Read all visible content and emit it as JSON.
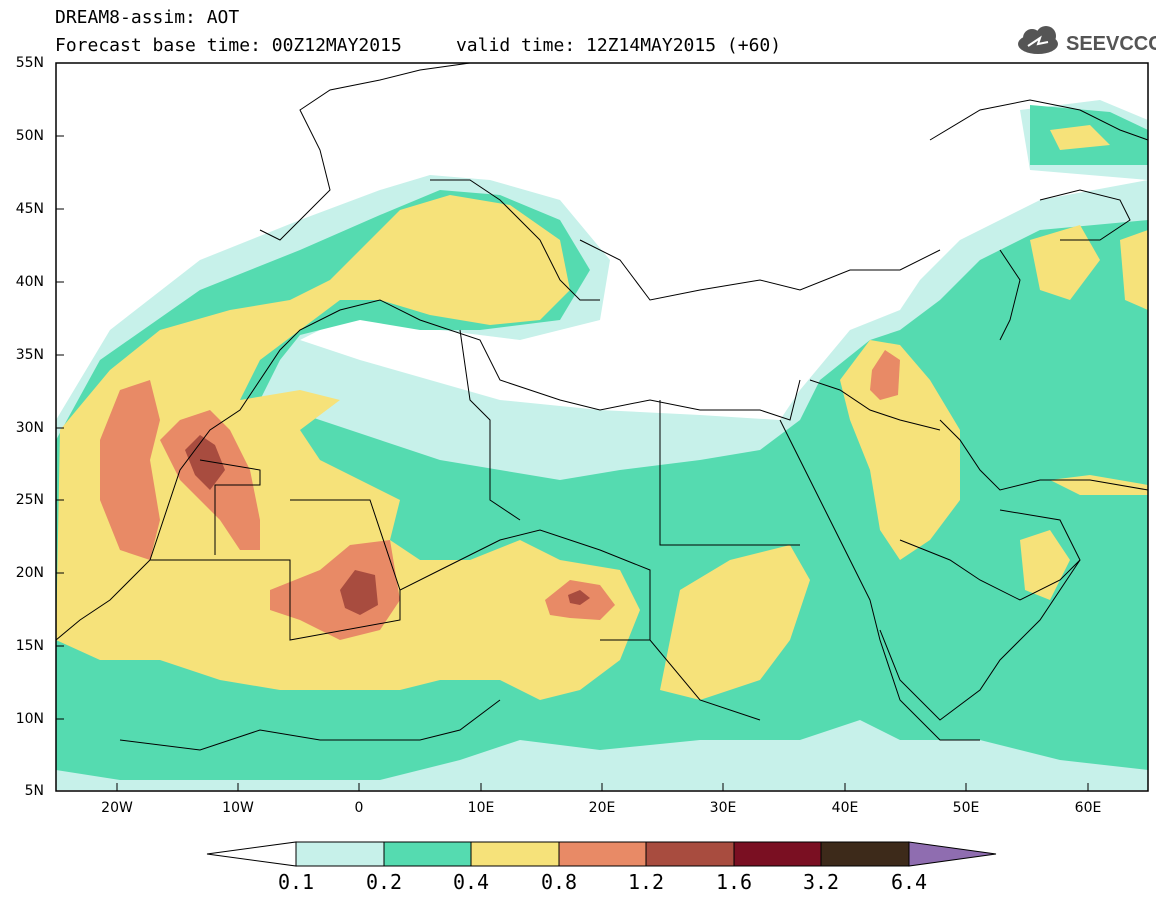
{
  "header": {
    "line1": "DREAM8-assim: AOT",
    "line2": "Forecast base time: 00Z12MAY2015     valid time: 12Z14MAY2015 (+60)",
    "logo_text": "SEEVCCC"
  },
  "map": {
    "lat_labels": [
      "55N",
      "50N",
      "45N",
      "40N",
      "35N",
      "30N",
      "25N",
      "20N",
      "15N",
      "10N",
      "5N"
    ],
    "lon_labels": [
      "20W",
      "10W",
      "0",
      "10E",
      "20E",
      "30E",
      "40E",
      "50E",
      "60E"
    ],
    "lon_range": [
      -25,
      65
    ],
    "lat_range": [
      5,
      55
    ]
  },
  "colorbar": {
    "levels": [
      "0.1",
      "0.2",
      "0.4",
      "0.8",
      "1.2",
      "1.6",
      "3.2",
      "6.4"
    ],
    "colors": [
      "#c7f1ea",
      "#55dbb0",
      "#f6e27a",
      "#e88a66",
      "#a84c3f",
      "#7a0f22",
      "#3d2a1a"
    ],
    "over_color": "#8f6db0",
    "under_color": "#ffffff"
  }
}
